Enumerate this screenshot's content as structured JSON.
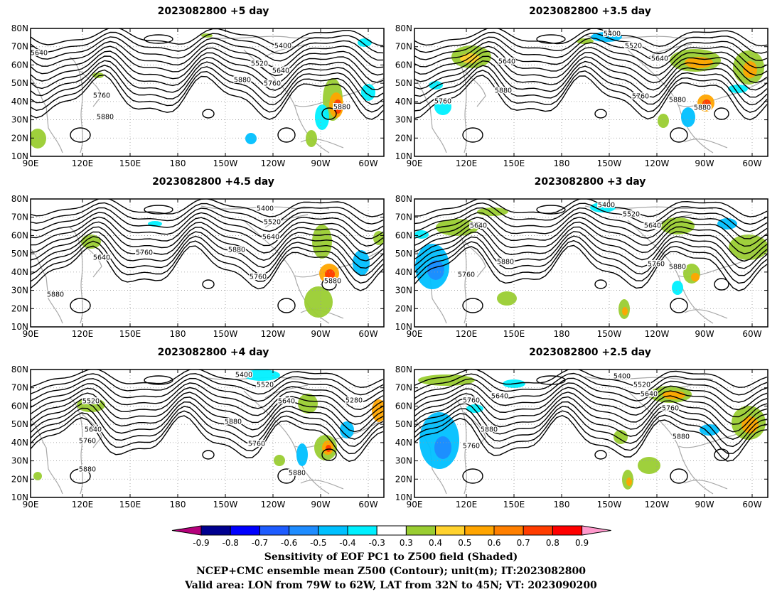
{
  "panels": [
    {
      "title": "2023082800  +5 day",
      "contour_labels": [
        "5640",
        "5400",
        "5520",
        "5640",
        "5760",
        "5880",
        "5760",
        "5880",
        "5880"
      ]
    },
    {
      "title": "2023082800  +3.5  day",
      "contour_labels": [
        "5400",
        "5520",
        "5640",
        "5640",
        "5880",
        "5760",
        "5760",
        "5880",
        "5880"
      ]
    },
    {
      "title": "2023082800  +4.5  day",
      "contour_labels": [
        "5400",
        "5520",
        "5640",
        "5640",
        "5760",
        "5880",
        "5760",
        "5880",
        "5880"
      ]
    },
    {
      "title": "2023082800  +3 day",
      "contour_labels": [
        "5400",
        "5520",
        "5640",
        "5640",
        "5880",
        "5760",
        "5760",
        "5880"
      ]
    },
    {
      "title": "2023082800  +4 day",
      "contour_labels": [
        "5400",
        "5520",
        "5520",
        "5640",
        "5280",
        "5640",
        "5880",
        "5760",
        "5760",
        "5880",
        "5880"
      ]
    },
    {
      "title": "2023082800  +2.5  day",
      "contour_labels": [
        "5400",
        "5520",
        "5640",
        "5640",
        "5760",
        "5760",
        "5880",
        "5880",
        "5760"
      ]
    }
  ],
  "map": {
    "lat_labels": [
      "80N",
      "70N",
      "60N",
      "50N",
      "40N",
      "30N",
      "20N",
      "10N"
    ],
    "lon_labels": [
      "90E",
      "120E",
      "150E",
      "180",
      "150W",
      "120W",
      "90W",
      "60W"
    ]
  },
  "colorbar": {
    "ticks": [
      "-0.9",
      "-0.8",
      "-0.7",
      "-0.6",
      "-0.5",
      "-0.4",
      "-0.3",
      "0.3",
      "0.4",
      "0.5",
      "0.6",
      "0.7",
      "0.8",
      "0.9"
    ],
    "colors": [
      "#b5007b",
      "#00008f",
      "#0000ff",
      "#1e5cff",
      "#1e8cff",
      "#00c0ff",
      "#00f0ff",
      "#ffffff",
      "#9acd32",
      "#ffd22e",
      "#ffa500",
      "#ff7f00",
      "#ff3c00",
      "#ff0000",
      "#ff99cc"
    ]
  },
  "captions": {
    "line1": "Sensitivity of EOF PC1 to Z500 field (Shaded)",
    "line2": "NCEP+CMC ensemble mean Z500 (Contour); unit(m); IT:2023082800",
    "line3": "Valid area: LON from 79W to 62W, LAT from 32N to 45N; VT: 2023090200"
  }
}
